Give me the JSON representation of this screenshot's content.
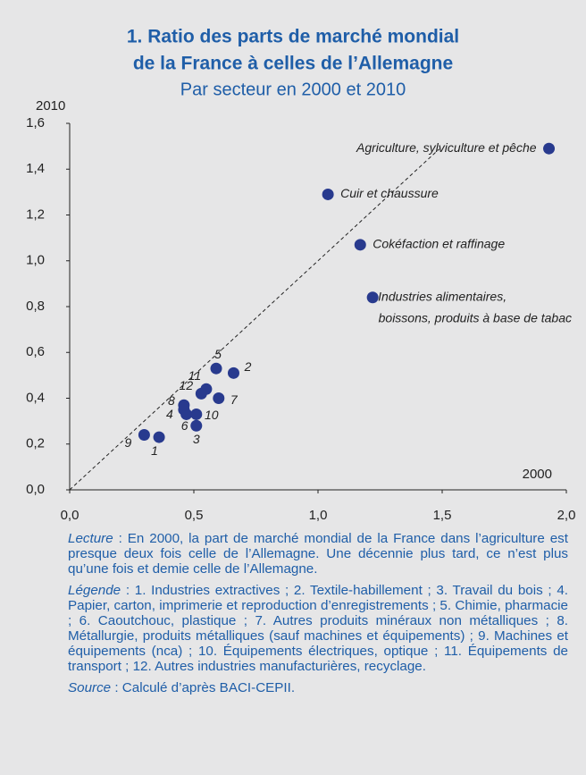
{
  "chart_data": {
    "type": "scatter",
    "title": [
      "1. Ratio des parts de marché mondial",
      "de la France à celles de l’Allemagne"
    ],
    "subtitle": "Par secteur en 2000 et 2010",
    "y_label": "2010",
    "x_label": "2000",
    "color": "#283a8e",
    "x": [
      1.93,
      1.04,
      1.17,
      1.22,
      0.36,
      0.66,
      0.51,
      0.46,
      0.59,
      0.47,
      0.6,
      0.46,
      0.3,
      0.51,
      0.55,
      0.53
    ],
    "y": [
      1.49,
      1.29,
      1.07,
      0.84,
      0.23,
      0.51,
      0.28,
      0.35,
      0.53,
      0.33,
      0.4,
      0.37,
      0.24,
      0.33,
      0.44,
      0.42
    ],
    "point_labels": [
      [
        "Agriculture, sylviculture et pêche"
      ],
      [
        "Cuir et chaussure"
      ],
      [
        "Cokéfaction et raffinage"
      ],
      [
        "Industries alimentaires,",
        "boissons, produits à base de tabac"
      ],
      [
        "1"
      ],
      [
        "2"
      ],
      [
        "3"
      ],
      [
        "4"
      ],
      [
        "5"
      ],
      [
        "6"
      ],
      [
        "7"
      ],
      [
        "8"
      ],
      [
        "9"
      ],
      [
        "10"
      ],
      [
        "11"
      ],
      [
        "12"
      ]
    ],
    "xlim": [
      0,
      2
    ],
    "ylim": [
      0,
      1.6
    ],
    "xticks": [
      {
        "value": 0,
        "label": "0,0"
      },
      {
        "value": 0.5,
        "label": "0,5"
      },
      {
        "value": 1,
        "label": "1,0"
      },
      {
        "value": 1.5,
        "label": "1,5"
      },
      {
        "value": 2,
        "label": "2,0"
      }
    ],
    "yticks": [
      {
        "value": 0,
        "label": "0,0"
      },
      {
        "value": 0.2,
        "label": "0,2"
      },
      {
        "value": 0.4,
        "label": "0,4"
      },
      {
        "value": 0.6,
        "label": "0,6"
      },
      {
        "value": 0.8,
        "label": "0,8"
      },
      {
        "value": 1,
        "label": "1,0"
      },
      {
        "value": 1.2,
        "label": "1,2"
      },
      {
        "value": 1.4,
        "label": "1,4"
      },
      {
        "value": 1.6,
        "label": "1,6"
      }
    ],
    "notes": [
      {
        "lead": "Lecture",
        "text": " : En 2000, la part de marché mondial de la France dans l’agriculture est presque deux fois celle de l’Allemagne. Une décennie plus tard, ce n’est plus qu’une fois et demie celle de l’Allemagne."
      },
      {
        "lead": "Légende",
        "text": " : 1. Industries extractives ; 2. Textile-habillement ; 3. Travail du bois ; 4. Papier, carton, imprimerie et reproduction d’enregistrements ; 5. Chimie, pharmacie ; 6. Caoutchouc, plastique ; 7. Autres produits minéraux non métalliques ; 8. Métallurgie, produits métalliques (sauf machines et équipements) ; 9. Machines et équipements (nca) ; 10. Équipements électriques, optique ; 11. Équipements de transport ; 12. Autres industries manufacturières, recyclage."
      },
      {
        "lead": "Source",
        "text": " : Calculé d’après BACI-CEPII."
      }
    ]
  }
}
